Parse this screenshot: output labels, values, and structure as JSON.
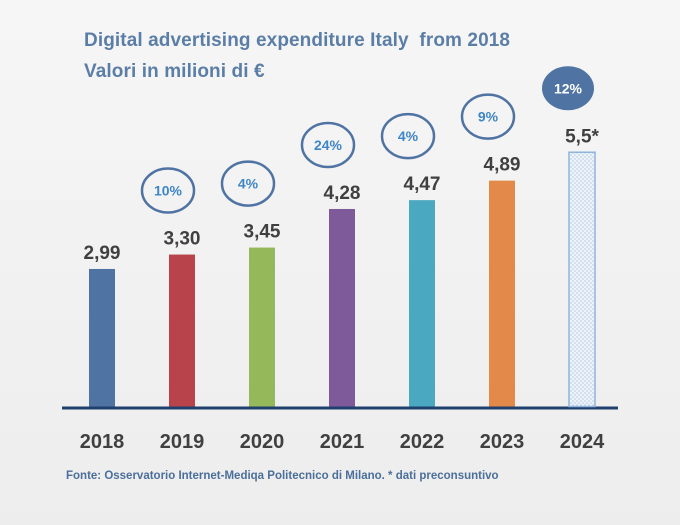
{
  "chart_data": {
    "type": "bar",
    "title": "Digital advertising expenditure Italy  from 2018",
    "subtitle": "Valori in milioni di €",
    "categories": [
      "2018",
      "2019",
      "2020",
      "2021",
      "2022",
      "2023",
      "2024"
    ],
    "values": [
      2.99,
      3.3,
      3.45,
      4.28,
      4.47,
      4.89,
      5.5
    ],
    "value_labels": [
      "2,99",
      "3,30",
      "3,45",
      "4,28",
      "4,47",
      "4,89",
      "5,5*"
    ],
    "growth_labels": [
      "",
      "10%",
      "4%",
      "24%",
      "4%",
      "9%",
      "12%"
    ],
    "bar_colors": [
      "#4f73a3",
      "#b8434a",
      "#95b85a",
      "#7e5a9b",
      "#4aa8c0",
      "#e3894a",
      "#e9eff7"
    ],
    "xlabel": "",
    "ylabel": "",
    "ylim": [
      0,
      6
    ],
    "grid": false,
    "legend": "none",
    "note": "Fonte: Osservatorio Internet-Mediqa Politecnico di Milano. * dati preconsuntivo"
  },
  "colors": {
    "title": "#5b7ea7",
    "axis": "#1f3f6e",
    "label": "#404040",
    "bubble_stroke": "#4f73a3",
    "bubble_text": "#3f86c6",
    "bubble_filled": "#4f73a3",
    "forecast_outline": "#8fb3d9"
  }
}
